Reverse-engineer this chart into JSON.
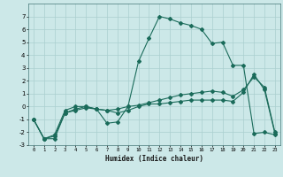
{
  "xlabel": "Humidex (Indice chaleur)",
  "background_color": "#cce8e8",
  "grid_color": "#aacfcf",
  "line_color": "#1a6b5a",
  "x_values": [
    0,
    1,
    2,
    3,
    4,
    5,
    6,
    7,
    8,
    9,
    10,
    11,
    12,
    13,
    14,
    15,
    16,
    17,
    18,
    19,
    20,
    21,
    22,
    23
  ],
  "series1": [
    -1.0,
    -2.5,
    -2.5,
    -0.5,
    -0.2,
    0.0,
    -0.2,
    -0.3,
    -0.2,
    0.0,
    0.1,
    0.3,
    0.5,
    0.7,
    0.9,
    1.0,
    1.1,
    1.2,
    1.1,
    0.8,
    1.3,
    2.3,
    1.5,
    -2.0
  ],
  "series2": [
    -1.0,
    -2.5,
    -2.2,
    -0.3,
    0.0,
    0.0,
    -0.2,
    -1.3,
    -1.2,
    0.0,
    3.5,
    5.3,
    7.0,
    6.8,
    6.5,
    6.3,
    6.0,
    4.9,
    5.0,
    3.2,
    3.2,
    -2.1,
    -2.0,
    -2.2
  ],
  "series3": [
    -1.0,
    -2.5,
    -2.3,
    -0.5,
    -0.3,
    -0.1,
    -0.2,
    -0.3,
    -0.5,
    -0.3,
    0.0,
    0.2,
    0.2,
    0.3,
    0.4,
    0.5,
    0.5,
    0.5,
    0.5,
    0.4,
    1.1,
    2.5,
    1.3,
    -2.1
  ],
  "ylim": [
    -3,
    8
  ],
  "xlim": [
    -0.5,
    23.5
  ],
  "yticks": [
    -3,
    -2,
    -1,
    0,
    1,
    2,
    3,
    4,
    5,
    6,
    7
  ],
  "xticks": [
    0,
    1,
    2,
    3,
    4,
    5,
    6,
    7,
    8,
    9,
    10,
    11,
    12,
    13,
    14,
    15,
    16,
    17,
    18,
    19,
    20,
    21,
    22,
    23
  ]
}
